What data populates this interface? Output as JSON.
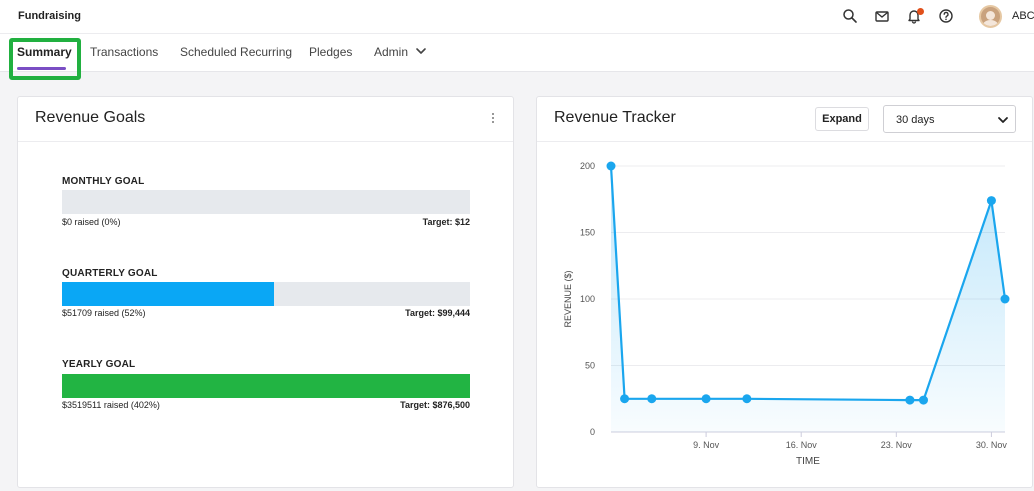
{
  "app": {
    "title": "Fundraising"
  },
  "header": {
    "icons": [
      "search-icon",
      "mail-icon",
      "bell-icon",
      "help-icon"
    ],
    "user_name": "ABC"
  },
  "tabs": [
    {
      "label": "Summary",
      "active": true
    },
    {
      "label": "Transactions",
      "active": false
    },
    {
      "label": "Scheduled Recurring",
      "active": false
    },
    {
      "label": "Pledges",
      "active": false
    },
    {
      "label": "Admin",
      "active": false,
      "has_dropdown": true
    }
  ],
  "revenue_goals": {
    "title": "Revenue Goals",
    "goals": [
      {
        "label": "MONTHLY GOAL",
        "raised_text": "$0 raised (0%)",
        "target_text": "Target: $12",
        "progress": 0,
        "color": "#0aa7f5"
      },
      {
        "label": "QUARTERLY GOAL",
        "raised_text": "$51709 raised (52%)",
        "target_text": "Target: $99,444",
        "progress": 0.52,
        "color": "#0aa7f5"
      },
      {
        "label": "YEARLY GOAL",
        "raised_text": "$3519511 raised (402%)",
        "target_text": "Target: $876,500",
        "progress": 1,
        "color": "#22b443"
      }
    ]
  },
  "revenue_tracker": {
    "title": "Revenue Tracker",
    "expand_label": "Expand",
    "range_value": "30 days"
  },
  "colors": {
    "accent": "#7a4ec4",
    "highlight": "#21b040",
    "series": "#1aa6ee",
    "notification": "#e1501b"
  },
  "chart_data": {
    "type": "area",
    "xlabel": "TIME",
    "ylabel": "REVENUE ($)",
    "ylim": [
      0,
      200
    ],
    "y_ticks": [
      0,
      50,
      100,
      150,
      200
    ],
    "x_ticks": [
      {
        "x": "2024-11-09",
        "label": "9. Nov"
      },
      {
        "x": "2024-11-16",
        "label": "16. Nov"
      },
      {
        "x": "2024-11-23",
        "label": "23. Nov"
      },
      {
        "x": "2024-11-30",
        "label": "30. Nov"
      }
    ],
    "xlim": [
      "2024-11-02",
      "2024-12-01"
    ],
    "grid": true,
    "series": [
      {
        "x": [
          "2024-11-02",
          "2024-11-03",
          "2024-11-05",
          "2024-11-09",
          "2024-11-12",
          "2024-11-24",
          "2024-11-25",
          "2024-11-30",
          "2024-12-01"
        ],
        "y": [
          200,
          25,
          25,
          25,
          25,
          24,
          24,
          174,
          100
        ]
      }
    ]
  }
}
